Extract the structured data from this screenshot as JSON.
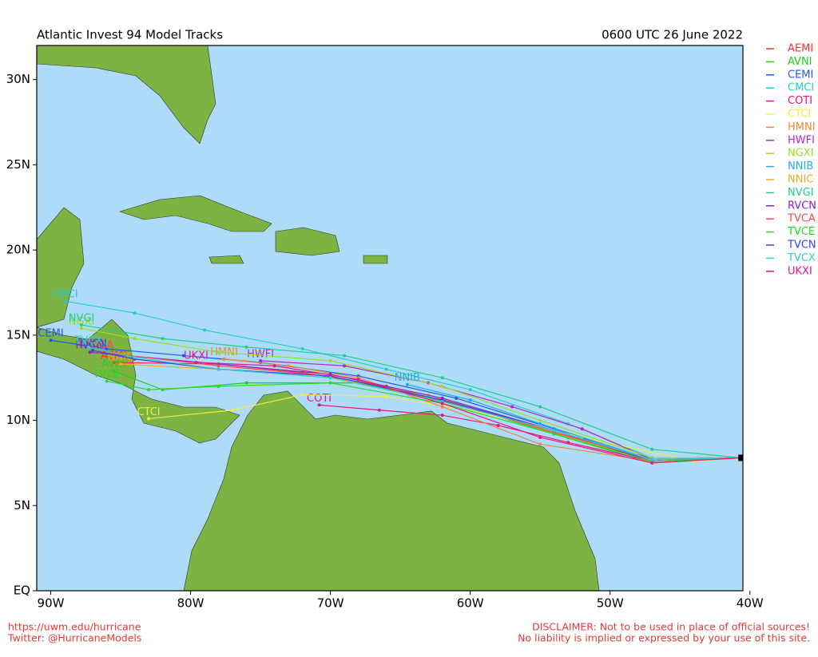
{
  "chart_data": {
    "type": "track-map",
    "title": "Atlantic Invest 94 Model Tracks",
    "subtitle": "0600 UTC 26 June 2022",
    "xlim": [
      -91,
      -40.5
    ],
    "ylim": [
      0,
      32
    ],
    "xticks": [
      {
        "value": -90,
        "label": "90W"
      },
      {
        "value": -80,
        "label": "80W"
      },
      {
        "value": -70,
        "label": "70W"
      },
      {
        "value": -60,
        "label": "60W"
      },
      {
        "value": -50,
        "label": "50W"
      },
      {
        "value": -40,
        "label": "40W"
      }
    ],
    "yticks": [
      {
        "value": 0,
        "label": "EQ"
      },
      {
        "value": 5,
        "label": "5N"
      },
      {
        "value": 10,
        "label": "10N"
      },
      {
        "value": 15,
        "label": "15N"
      },
      {
        "value": 20,
        "label": "20N"
      },
      {
        "value": 25,
        "label": "25N"
      },
      {
        "value": 30,
        "label": "30N"
      }
    ],
    "start": {
      "lon": -40.6,
      "lat": 7.8
    },
    "series": [
      {
        "name": "AEMI",
        "color": "#ff3030",
        "lon": [
          -40.6,
          -47,
          -53,
          -60,
          -66,
          -72,
          -78,
          -85.5
        ],
        "lat": [
          7.8,
          7.6,
          9.0,
          10.7,
          12.0,
          12.8,
          13.3,
          13.4
        ]
      },
      {
        "name": "AVNI",
        "color": "#22cc22",
        "lon": [
          -40.6,
          -47,
          -54,
          -61,
          -68,
          -76,
          -82,
          -85.5
        ],
        "lat": [
          7.8,
          7.5,
          9.2,
          11.0,
          12.2,
          12.2,
          11.8,
          12.9
        ]
      },
      {
        "name": "CEMI",
        "color": "#2255ee",
        "lon": [
          -40.6,
          -47,
          -54,
          -61,
          -68,
          -75,
          -80.5,
          -86,
          -90
        ],
        "lat": [
          7.8,
          7.6,
          9.5,
          11.3,
          12.6,
          13.4,
          13.8,
          14.2,
          14.7
        ]
      },
      {
        "name": "CMCI",
        "color": "#22cccc",
        "lon": [
          -40.6,
          -47,
          -53,
          -60,
          -66,
          -72,
          -79,
          -84,
          -89
        ],
        "lat": [
          7.8,
          7.8,
          9.8,
          11.8,
          13.0,
          14.2,
          15.3,
          16.3,
          17.0
        ]
      },
      {
        "name": "COTI",
        "color": "#ee1177",
        "lon": [
          -40.6,
          -47,
          -53,
          -58,
          -62,
          -66.5,
          -70.8
        ],
        "lat": [
          7.8,
          7.6,
          8.7,
          9.7,
          10.3,
          10.6,
          10.9
        ]
      },
      {
        "name": "CTCI",
        "color": "#eeee44",
        "lon": [
          -40.6,
          -44,
          -52,
          -60,
          -66,
          -72,
          -77,
          -83
        ],
        "lat": [
          7.8,
          7.6,
          9.0,
          10.6,
          11.4,
          11.5,
          10.6,
          10.1
        ]
      },
      {
        "name": "HMNI",
        "color": "#ee8833",
        "lon": [
          -40.6,
          -47,
          -55,
          -62,
          -68,
          -73,
          -77.6
        ],
        "lat": [
          7.8,
          7.6,
          8.6,
          10.8,
          12.5,
          13.2,
          13.6
        ]
      },
      {
        "name": "HWFI",
        "color": "#bb22cc",
        "lon": [
          -40.6,
          -47,
          -52,
          -57,
          -63,
          -69,
          -75
        ],
        "lat": [
          7.8,
          7.7,
          9.5,
          10.8,
          12.2,
          13.2,
          13.5
        ]
      },
      {
        "name": "NGXI",
        "color": "#99dd22",
        "lon": [
          -40.6,
          -47,
          -55,
          -62,
          -70,
          -78,
          -84,
          -87.8
        ],
        "lat": [
          7.8,
          7.8,
          10.0,
          12.0,
          13.5,
          14.0,
          14.8,
          15.4
        ]
      },
      {
        "name": "NNIB",
        "color": "#22aaee",
        "lon": [
          -40.6,
          -47,
          -55,
          -60,
          -64.5
        ],
        "lat": [
          7.8,
          7.7,
          9.8,
          11.2,
          12.1
        ]
      },
      {
        "name": "NNIC",
        "color": "#eeaa22",
        "lon": [
          -40.6,
          -47,
          -55,
          -63,
          -70,
          -78,
          -85
        ],
        "lat": [
          7.8,
          7.6,
          9.5,
          11.5,
          12.5,
          13.0,
          13.3
        ]
      },
      {
        "name": "NVGI",
        "color": "#22cc88",
        "lon": [
          -40.6,
          -47,
          -55,
          -62,
          -69,
          -76,
          -82,
          -87.8
        ],
        "lat": [
          7.8,
          8.3,
          10.8,
          12.5,
          13.8,
          14.3,
          14.8,
          15.6
        ]
      },
      {
        "name": "RVCN",
        "color": "#8822cc",
        "lon": [
          -40.6,
          -47,
          -54,
          -62,
          -70,
          -78,
          -87.2
        ],
        "lat": [
          7.8,
          7.6,
          9.4,
          11.3,
          12.7,
          13.3,
          14.0
        ]
      },
      {
        "name": "TVCA",
        "color": "#ff4455",
        "lon": [
          -40.6,
          -47,
          -54,
          -62,
          -70,
          -78,
          -86.5
        ],
        "lat": [
          7.8,
          7.7,
          9.3,
          11.2,
          12.6,
          13.2,
          14.0
        ]
      },
      {
        "name": "TVCE",
        "color": "#22dd22",
        "lon": [
          -40.6,
          -47,
          -54,
          -62,
          -70,
          -78,
          -83,
          -86
        ],
        "lat": [
          7.8,
          7.6,
          9.2,
          11.0,
          12.2,
          12.0,
          11.8,
          12.3
        ]
      },
      {
        "name": "TVCN",
        "color": "#3344ee",
        "lon": [
          -40.6,
          -47,
          -54,
          -62,
          -70,
          -78,
          -84,
          -87
        ],
        "lat": [
          7.8,
          7.7,
          9.4,
          11.2,
          12.6,
          13.0,
          13.6,
          14.1
        ]
      },
      {
        "name": "TVCX",
        "color": "#33cccc",
        "lon": [
          -40.6,
          -47,
          -54,
          -62,
          -70,
          -78,
          -84,
          -87.3
        ],
        "lat": [
          7.8,
          7.7,
          9.4,
          11.1,
          12.5,
          13.0,
          13.7,
          14.3
        ]
      },
      {
        "name": "UKXI",
        "color": "#ee1188",
        "lon": [
          -40.6,
          -47,
          -55,
          -62,
          -68,
          -74,
          -79.6
        ],
        "lat": [
          7.8,
          7.5,
          9.0,
          11.0,
          12.4,
          13.2,
          13.4
        ]
      }
    ],
    "footer_left": [
      "https://uwm.edu/hurricane",
      "Twitter: @HurricaneModels"
    ],
    "footer_right": [
      "DISCLAIMER: Not to be used in place of official sources!",
      "No liability is implied or expressed by your use of this site."
    ]
  }
}
